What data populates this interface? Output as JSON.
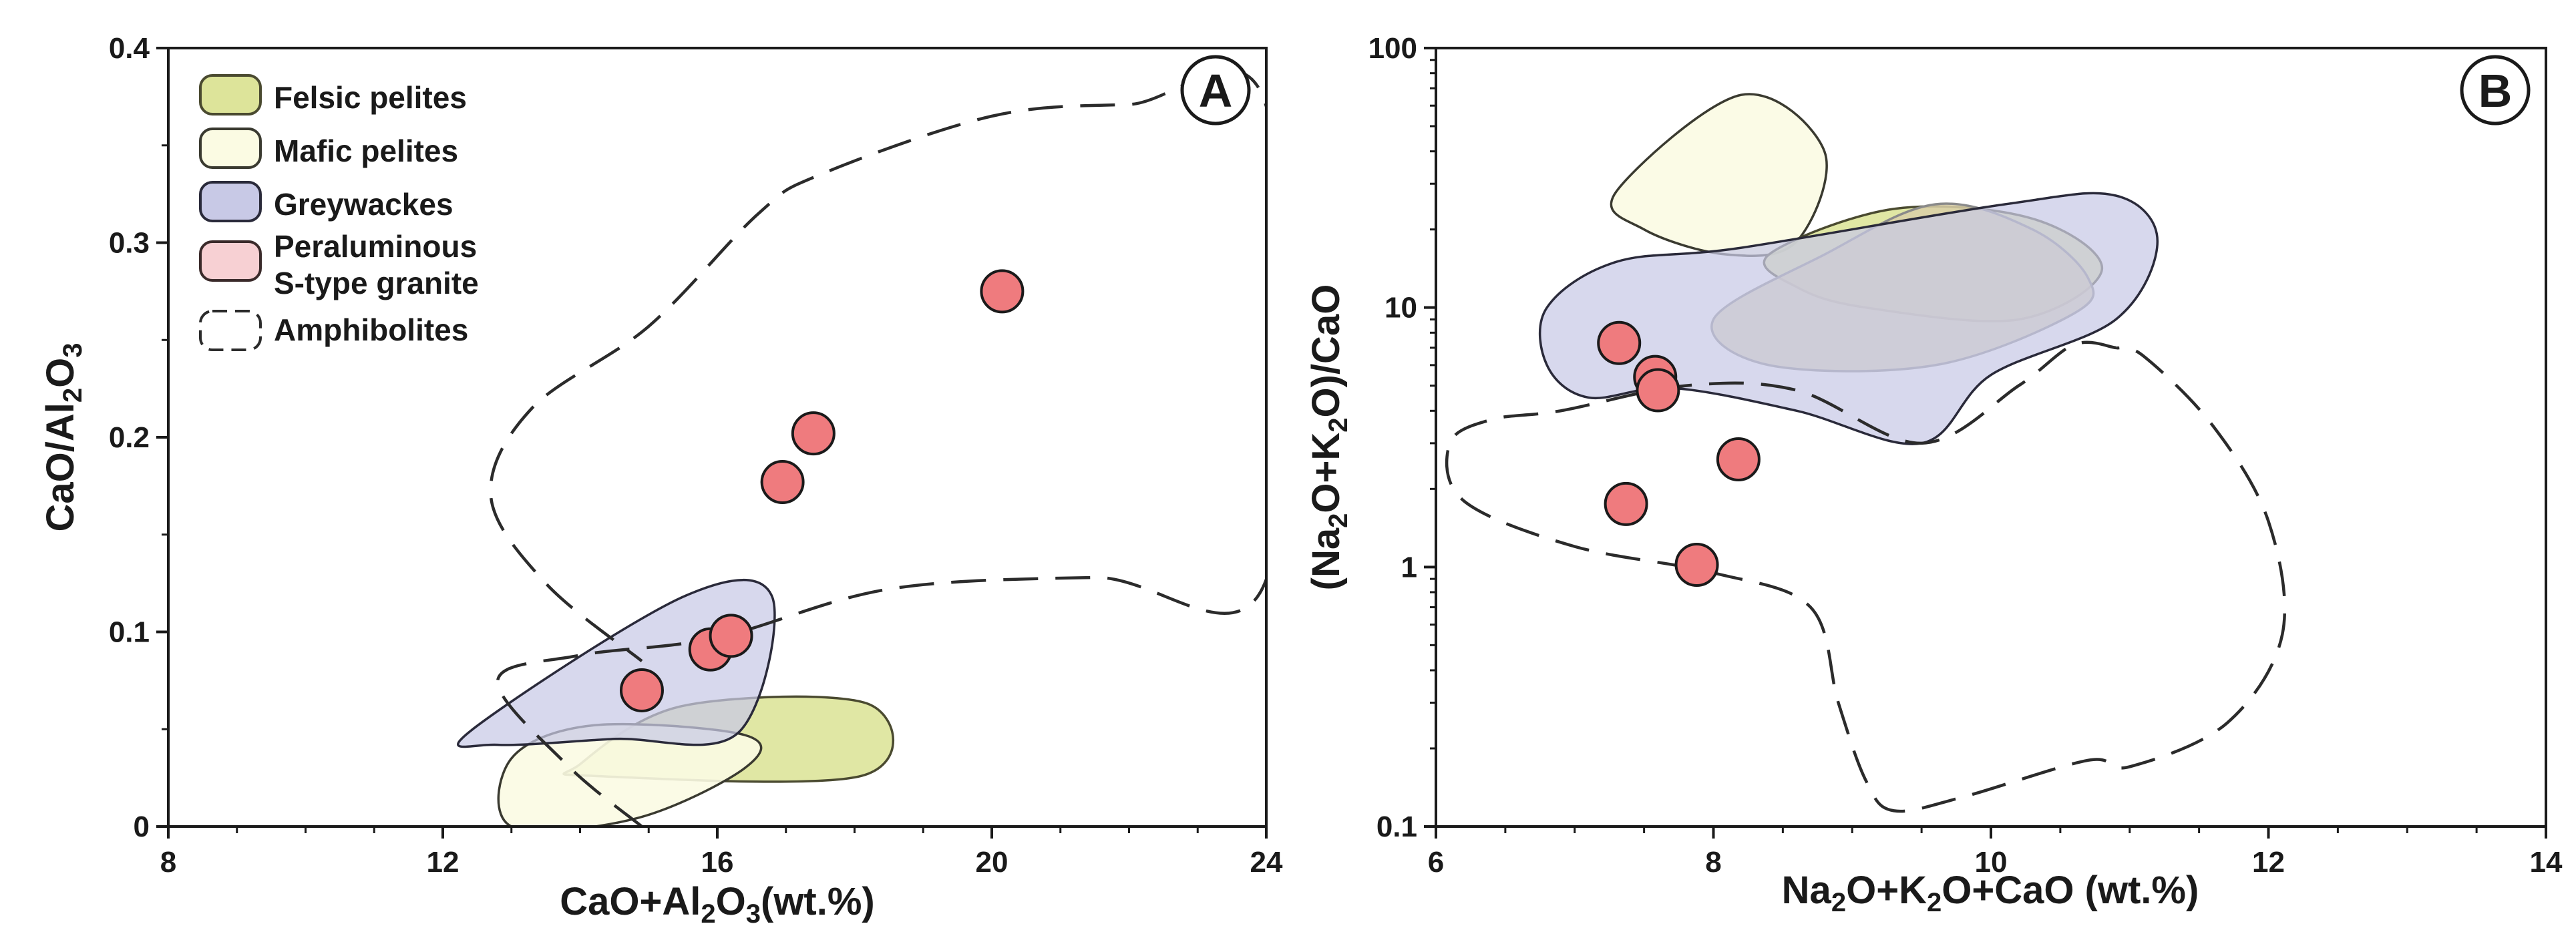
{
  "chart_data": [
    {
      "panel": "A",
      "type": "scatter",
      "xlabel": "CaO+Al2O3(wt.%)",
      "ylabel": "CaO/Al2O3",
      "xlim": [
        8,
        24
      ],
      "ylim": [
        0,
        0.4
      ],
      "x_ticks": [
        8,
        12,
        16,
        20,
        24
      ],
      "y_ticks": [
        0,
        0.1,
        0.2,
        0.3,
        0.4
      ],
      "x_tick_labels": [
        "8",
        "12",
        "16",
        "20",
        "24"
      ],
      "y_tick_labels": [
        "0",
        "0.1",
        "0.2",
        "0.3",
        "0.4"
      ],
      "points": [
        {
          "x": 14.9,
          "y": 0.07
        },
        {
          "x": 15.9,
          "y": 0.091
        },
        {
          "x": 16.2,
          "y": 0.098
        },
        {
          "x": 16.95,
          "y": 0.177
        },
        {
          "x": 17.4,
          "y": 0.202
        },
        {
          "x": 20.15,
          "y": 0.275
        }
      ],
      "fields": [
        {
          "name": "Felsic pelites",
          "polygon": [
            [
              14.0,
              0.032
            ],
            [
              15.5,
              0.062
            ],
            [
              18.2,
              0.063
            ],
            [
              18.1,
              0.026
            ],
            [
              14.2,
              0.026
            ]
          ]
        },
        {
          "name": "Mafic pelites",
          "polygon": [
            [
              13.0,
              0.035
            ],
            [
              14.2,
              0.052
            ],
            [
              16.4,
              0.047
            ],
            [
              16.4,
              0.03
            ],
            [
              14.8,
              0.004
            ],
            [
              13.0,
              0.0
            ]
          ]
        },
        {
          "name": "Greywackes",
          "polygon": [
            [
              12.4,
              0.049
            ],
            [
              15.5,
              0.118
            ],
            [
              16.8,
              0.118
            ],
            [
              16.3,
              0.048
            ],
            [
              14.5,
              0.045
            ],
            [
              12.8,
              0.042
            ]
          ]
        }
      ],
      "amphibolite_boundary": [
        [
          14.9,
          0.0
        ],
        [
          13.8,
          0.032
        ],
        [
          12.8,
          0.075
        ],
        [
          14.0,
          0.088
        ],
        [
          16.0,
          0.097
        ],
        [
          18.5,
          0.122
        ],
        [
          21.5,
          0.128
        ],
        [
          24.0,
          0.127
        ],
        [
          24.0,
          0.37
        ],
        [
          22.0,
          0.371
        ],
        [
          20.0,
          0.365
        ],
        [
          17.5,
          0.335
        ],
        [
          16.6,
          0.315
        ],
        [
          15.0,
          0.257
        ],
        [
          13.3,
          0.215
        ],
        [
          12.7,
          0.17
        ],
        [
          13.5,
          0.125
        ],
        [
          14.9,
          0.085
        ]
      ],
      "legend": {
        "position": "top-left",
        "entries": [
          "Felsic pelites",
          "Mafic pelites",
          "Greywackes",
          "Peraluminous S-type granite",
          "Amphibolites"
        ]
      }
    },
    {
      "panel": "B",
      "type": "scatter",
      "xlabel": "Na2O+K2O+CaO (wt.%)",
      "ylabel": "(Na2O+K2O)/CaO",
      "xlim": [
        6,
        14
      ],
      "ylim": [
        0.1,
        100
      ],
      "yscale": "log",
      "x_ticks": [
        6,
        8,
        10,
        12,
        14
      ],
      "y_ticks": [
        0.1,
        1,
        10,
        100
      ],
      "x_tick_labels": [
        "6",
        "8",
        "10",
        "12",
        "14"
      ],
      "y_tick_labels": [
        "0.1",
        "1",
        "10",
        "100"
      ],
      "points": [
        {
          "x": 7.32,
          "y": 7.3
        },
        {
          "x": 7.58,
          "y": 5.4
        },
        {
          "x": 7.6,
          "y": 4.8
        },
        {
          "x": 8.18,
          "y": 2.6
        },
        {
          "x": 7.37,
          "y": 1.75
        },
        {
          "x": 7.88,
          "y": 1.02
        }
      ],
      "fields": [
        {
          "name": "Mafic pelites",
          "polygon": [
            [
              7.3,
              28
            ],
            [
              8.2,
              66
            ],
            [
              8.8,
              40
            ],
            [
              8.6,
              18
            ],
            [
              8.1,
              16
            ],
            [
              7.5,
              20
            ]
          ]
        },
        {
          "name": "Felsic pelites",
          "polygon": [
            [
              8.4,
              16
            ],
            [
              9.3,
              24
            ],
            [
              10.3,
              22
            ],
            [
              10.8,
              14
            ],
            [
              10.2,
              9
            ],
            [
              9.1,
              10
            ],
            [
              8.6,
              12
            ]
          ]
        },
        {
          "name": "Peraluminous S-type granite",
          "polygon": [
            [
              8.0,
              9
            ],
            [
              8.8,
              16
            ],
            [
              9.6,
              25
            ],
            [
              10.3,
              20
            ],
            [
              10.7,
              13
            ],
            [
              10.6,
              9.5
            ],
            [
              9.6,
              6
            ],
            [
              8.4,
              6
            ]
          ]
        },
        {
          "name": "Greywackes",
          "polygon": [
            [
              6.8,
              10
            ],
            [
              7.3,
              15
            ],
            [
              8.2,
              17
            ],
            [
              10.1,
              25
            ],
            [
              10.9,
              27
            ],
            [
              11.2,
              18
            ],
            [
              10.9,
              9
            ],
            [
              10.0,
              5.5
            ],
            [
              9.5,
              3.0
            ],
            [
              8.6,
              4.0
            ],
            [
              7.7,
              4.9
            ],
            [
              7.1,
              4.5
            ],
            [
              6.8,
              6
            ]
          ]
        }
      ],
      "amphibolite_boundary": [
        [
          10.9,
          7.0
        ],
        [
          10.6,
          7.2
        ],
        [
          10.2,
          5.0
        ],
        [
          9.5,
          3.0
        ],
        [
          8.6,
          4.8
        ],
        [
          7.8,
          5.0
        ],
        [
          6.9,
          4.0
        ],
        [
          6.4,
          3.7
        ],
        [
          6.1,
          3.0
        ],
        [
          6.2,
          1.8
        ],
        [
          7.0,
          1.2
        ],
        [
          8.0,
          0.95
        ],
        [
          8.7,
          0.7
        ],
        [
          8.9,
          0.3
        ],
        [
          9.1,
          0.15
        ],
        [
          9.3,
          0.115
        ],
        [
          9.8,
          0.13
        ],
        [
          10.7,
          0.18
        ],
        [
          11.0,
          0.17
        ],
        [
          11.7,
          0.25
        ],
        [
          12.1,
          0.55
        ],
        [
          12.0,
          1.5
        ],
        [
          11.6,
          3.5
        ],
        [
          11.1,
          6.5
        ],
        [
          10.9,
          7.0
        ]
      ]
    }
  ],
  "panel_labels": [
    "A",
    "B"
  ],
  "colors": {
    "felsic_fill": "#dde49a",
    "felsic_stroke": "#4a4a30",
    "mafic_fill": "#fbfbe3",
    "mafic_stroke": "#3a3a30",
    "greywacke_fill": "#c8c9e6",
    "greywacke_stroke": "#2a2a3a",
    "granite_fill": "#f7d0d3",
    "granite_stroke": "#3a2a2a",
    "overlap_fill": "#d9cfa8",
    "point_fill": "#ef7b7e",
    "axis": "#1a1a1a"
  }
}
